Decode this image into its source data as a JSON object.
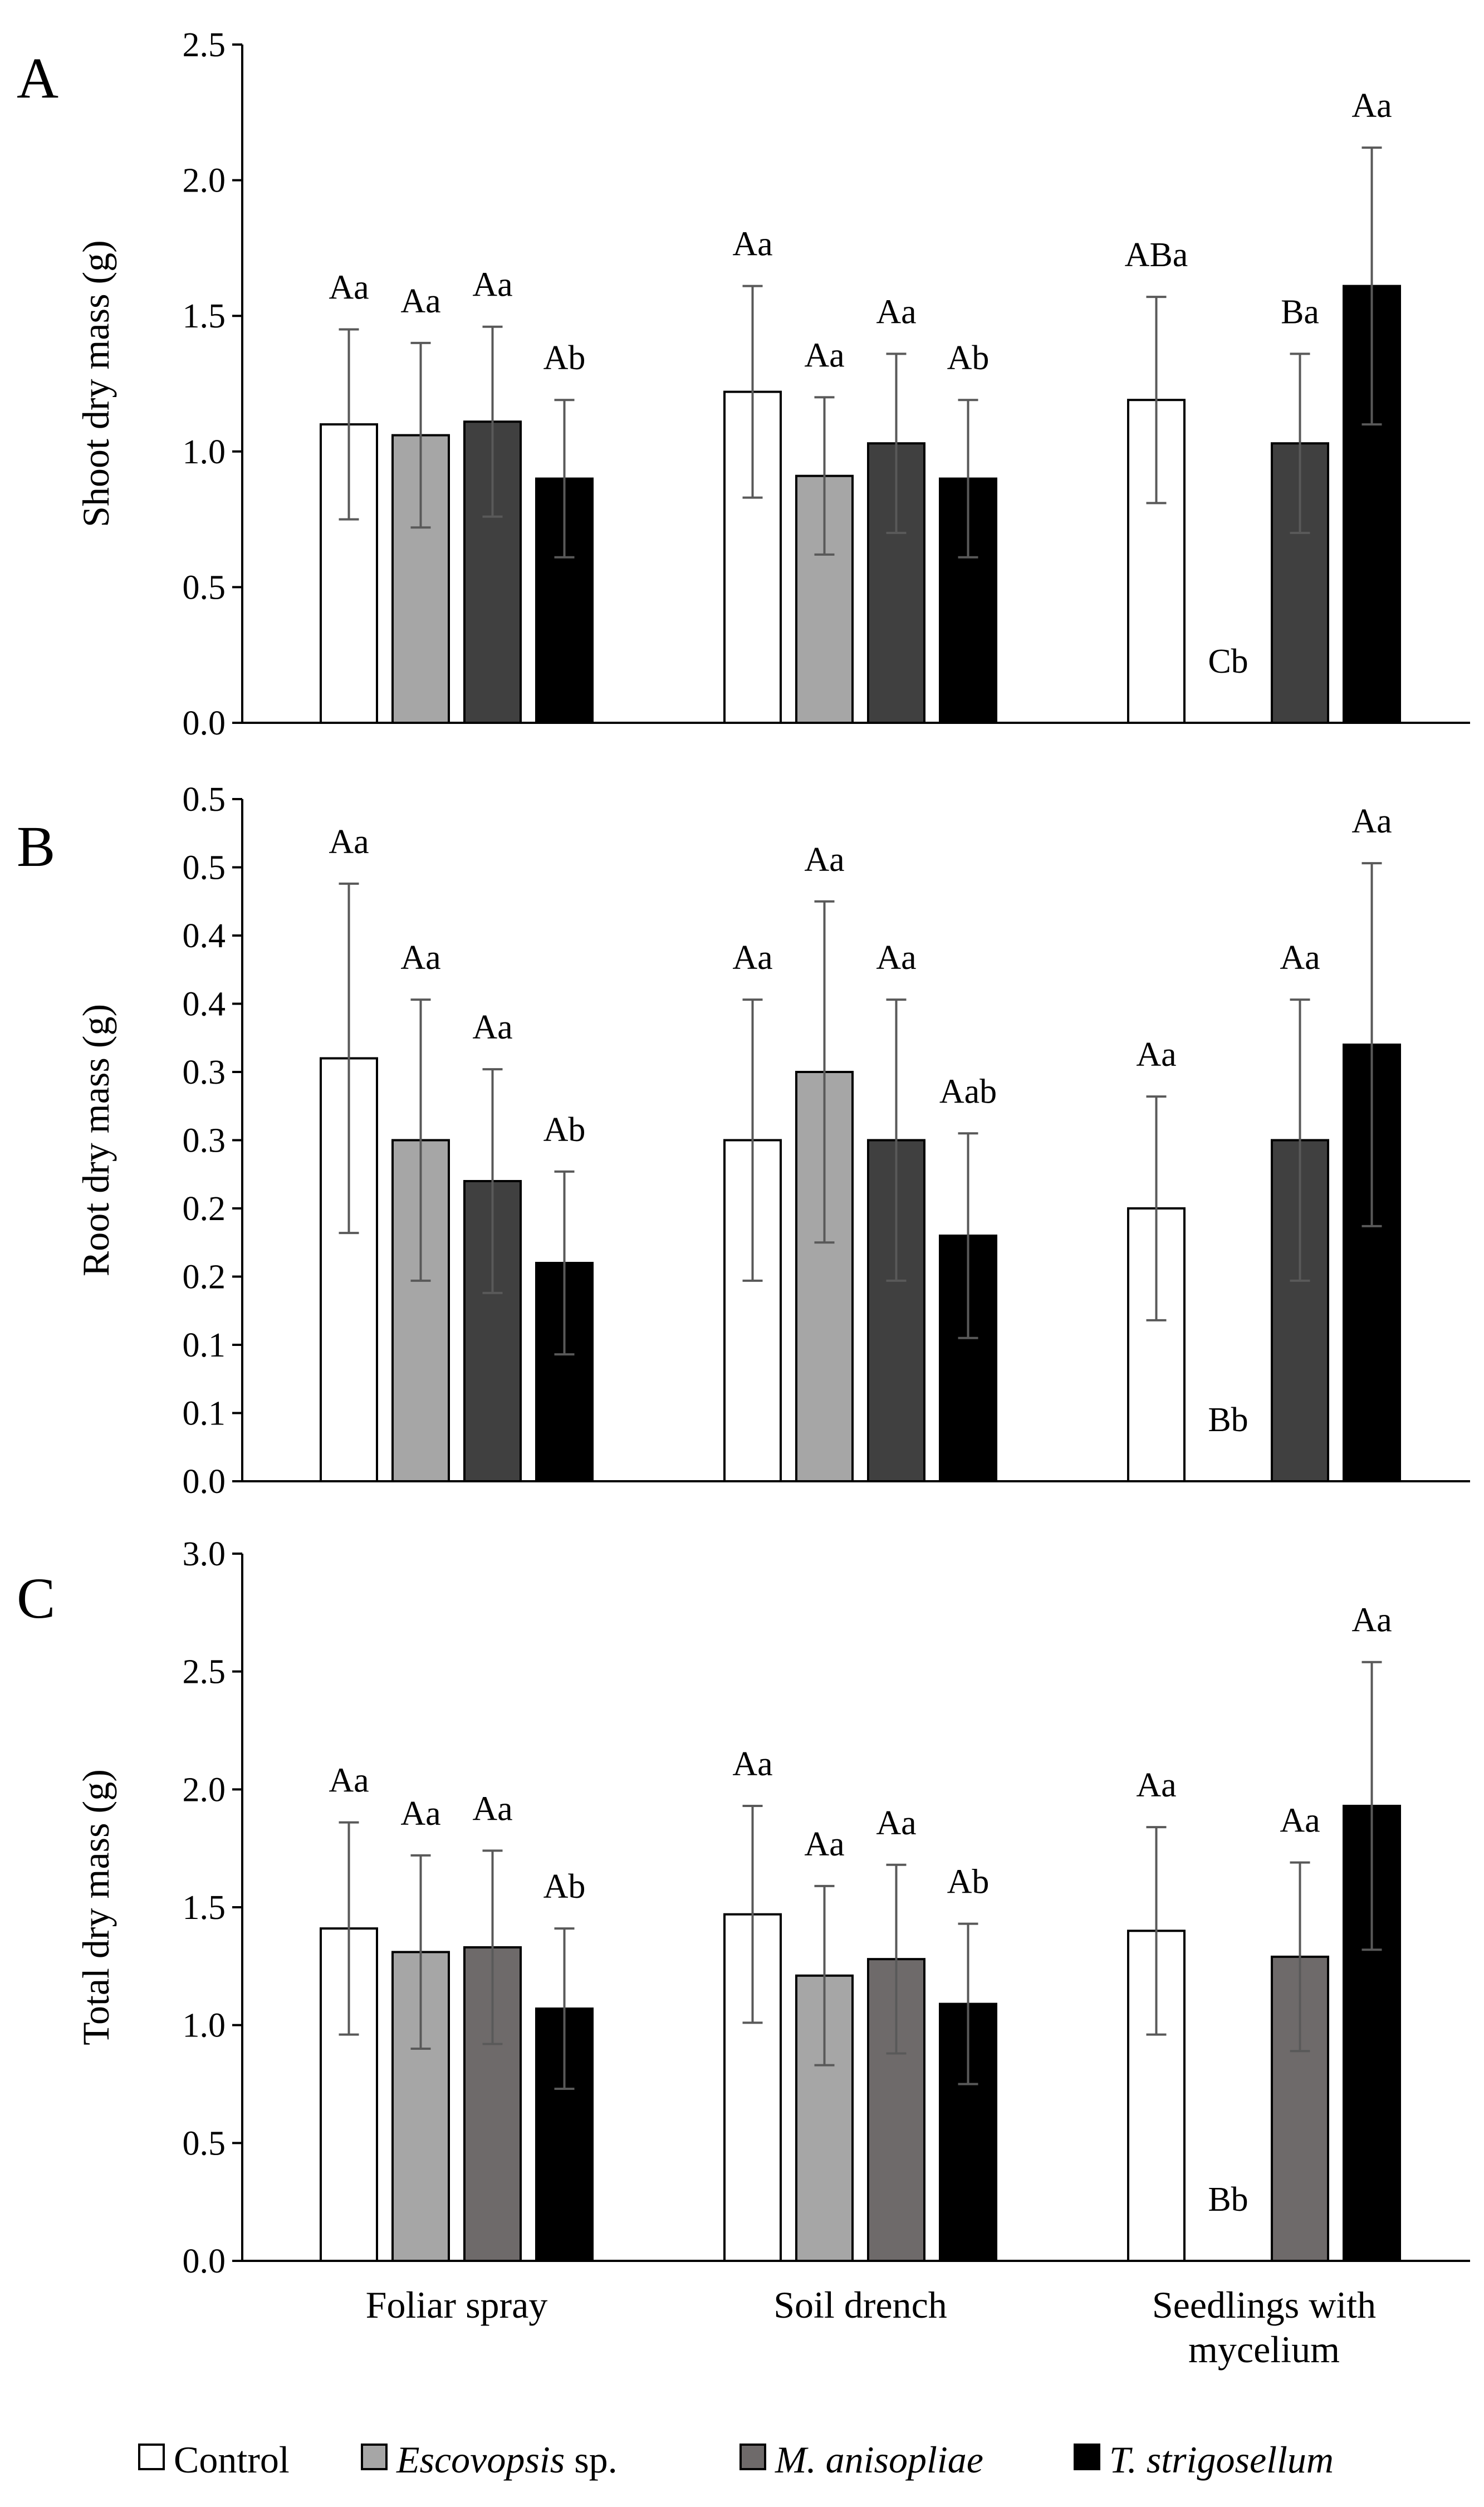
{
  "chart_data": [
    {
      "type": "bar",
      "panel_label": "A",
      "ylabel": "Shoot dry mass (g)",
      "ylim": [
        0,
        2.5
      ],
      "yticks": [
        0,
        0.5,
        1,
        1.5,
        2,
        2.5
      ],
      "yticklabels": [
        "0.0",
        "0.5",
        "1.0",
        "1.5",
        "2.0",
        "2.5"
      ],
      "categories": [
        "Foliar spray",
        "Soil drench",
        "Seedlings with mycelium"
      ],
      "series": [
        {
          "name": "Control",
          "values": [
            1.1,
            1.22,
            1.19
          ],
          "errors": [
            0.35,
            0.39,
            0.38
          ],
          "labels": [
            "Aa",
            "Aa",
            "ABa"
          ]
        },
        {
          "name": "Escovopsis sp.",
          "values": [
            1.06,
            0.91,
            0.0
          ],
          "errors": [
            0.34,
            0.29,
            0
          ],
          "labels": [
            "Aa",
            "Aa",
            "Cb"
          ]
        },
        {
          "name": "M. anisopliae",
          "values": [
            1.11,
            1.03,
            1.03
          ],
          "errors": [
            0.35,
            0.33,
            0.33
          ],
          "labels": [
            "Aa",
            "Aa",
            "Ba"
          ]
        },
        {
          "name": "T. strigosellum",
          "values": [
            0.9,
            0.9,
            1.61
          ],
          "errors": [
            0.29,
            0.29,
            0.51
          ],
          "labels": [
            "Ab",
            "Ab",
            "Aa"
          ]
        }
      ]
    },
    {
      "type": "bar",
      "panel_label": "B",
      "ylabel": "Root dry mass (g)",
      "ylim": [
        0,
        0.5
      ],
      "yticks": [
        0,
        0.05,
        0.1,
        0.15,
        0.2,
        0.25,
        0.3,
        0.35,
        0.4,
        0.45,
        0.5
      ],
      "yticklabels": [
        "0.0",
        "0.1",
        "0.1",
        "0.2",
        "0.2",
        "0.3",
        "0.3",
        "0.4",
        "0.4",
        "0.5",
        "0.5"
      ],
      "categories": [
        "Foliar spray",
        "Soil drench",
        "Seedlings with mycelium"
      ],
      "series": [
        {
          "name": "Control",
          "values": [
            0.31,
            0.25,
            0.2
          ],
          "errors": [
            0.128,
            0.103,
            0.082
          ],
          "labels": [
            "Aa",
            "Aa",
            "Aa"
          ]
        },
        {
          "name": "Escovopsis sp.",
          "values": [
            0.25,
            0.3,
            0.0
          ],
          "errors": [
            0.103,
            0.125,
            0
          ],
          "labels": [
            "Aa",
            "Aa",
            "Bb"
          ]
        },
        {
          "name": "M. anisopliae",
          "values": [
            0.22,
            0.25,
            0.25
          ],
          "errors": [
            0.082,
            0.103,
            0.103
          ],
          "labels": [
            "Aa",
            "Aa",
            "Aa"
          ]
        },
        {
          "name": "T. strigosellum",
          "values": [
            0.16,
            0.18,
            0.32
          ],
          "errors": [
            0.067,
            0.075,
            0.133
          ],
          "labels": [
            "Ab",
            "Aab",
            "Aa"
          ]
        }
      ]
    },
    {
      "type": "bar",
      "panel_label": "C",
      "ylabel": "Total dry mass (g)",
      "ylim": [
        0,
        3.0
      ],
      "yticks": [
        0,
        0.5,
        1,
        1.5,
        2,
        2.5,
        3
      ],
      "yticklabels": [
        "0.0",
        "0.5",
        "1.0",
        "1.5",
        "2.0",
        "2.5",
        "3.0"
      ],
      "categories": [
        "Foliar spray",
        "Soil drench",
        "Seedlings with mycelium"
      ],
      "series": [
        {
          "name": "Control",
          "values": [
            1.41,
            1.47,
            1.4
          ],
          "errors": [
            0.45,
            0.46,
            0.44
          ],
          "labels": [
            "Aa",
            "Aa",
            "Aa"
          ]
        },
        {
          "name": "Escovopsis sp.",
          "values": [
            1.31,
            1.21,
            0.0
          ],
          "errors": [
            0.41,
            0.38,
            0
          ],
          "labels": [
            "Aa",
            "Aa",
            "Bb"
          ]
        },
        {
          "name": "M. anisopliae",
          "values": [
            1.33,
            1.28,
            1.29
          ],
          "errors": [
            0.41,
            0.4,
            0.4
          ],
          "labels": [
            "Aa",
            "Aa",
            "Aa"
          ]
        },
        {
          "name": "T. strigosellum",
          "values": [
            1.07,
            1.09,
            1.93
          ],
          "errors": [
            0.34,
            0.34,
            0.61
          ],
          "labels": [
            "Ab",
            "Ab",
            "Aa"
          ]
        }
      ]
    }
  ],
  "x_category_labels": [
    [
      "Foliar spray"
    ],
    [
      "Soil drench"
    ],
    [
      "Seedlings with",
      "mycelium"
    ]
  ],
  "legend": {
    "position": "bottom",
    "entries": [
      {
        "label": "Control",
        "italic": false,
        "suffix": ""
      },
      {
        "label": "Escovopsis",
        "italic": true,
        "suffix": " sp."
      },
      {
        "label": "M. anisopliae",
        "italic": true,
        "suffix": ""
      },
      {
        "label": "T. strigosellum",
        "italic": true,
        "suffix": ""
      }
    ]
  },
  "colors": {
    "panel_A": [
      "#ffffff",
      "#a6a6a6",
      "#404040",
      "#000000"
    ],
    "panel_B": [
      "#ffffff",
      "#a6a6a6",
      "#404040",
      "#000000"
    ],
    "panel_C": [
      "#ffffff",
      "#a6a6a6",
      "#6e6a6a",
      "#000000"
    ],
    "legend": [
      "#ffffff",
      "#a6a6a6",
      "#6e6a6a",
      "#000000"
    ],
    "error_bar": "#595959"
  }
}
